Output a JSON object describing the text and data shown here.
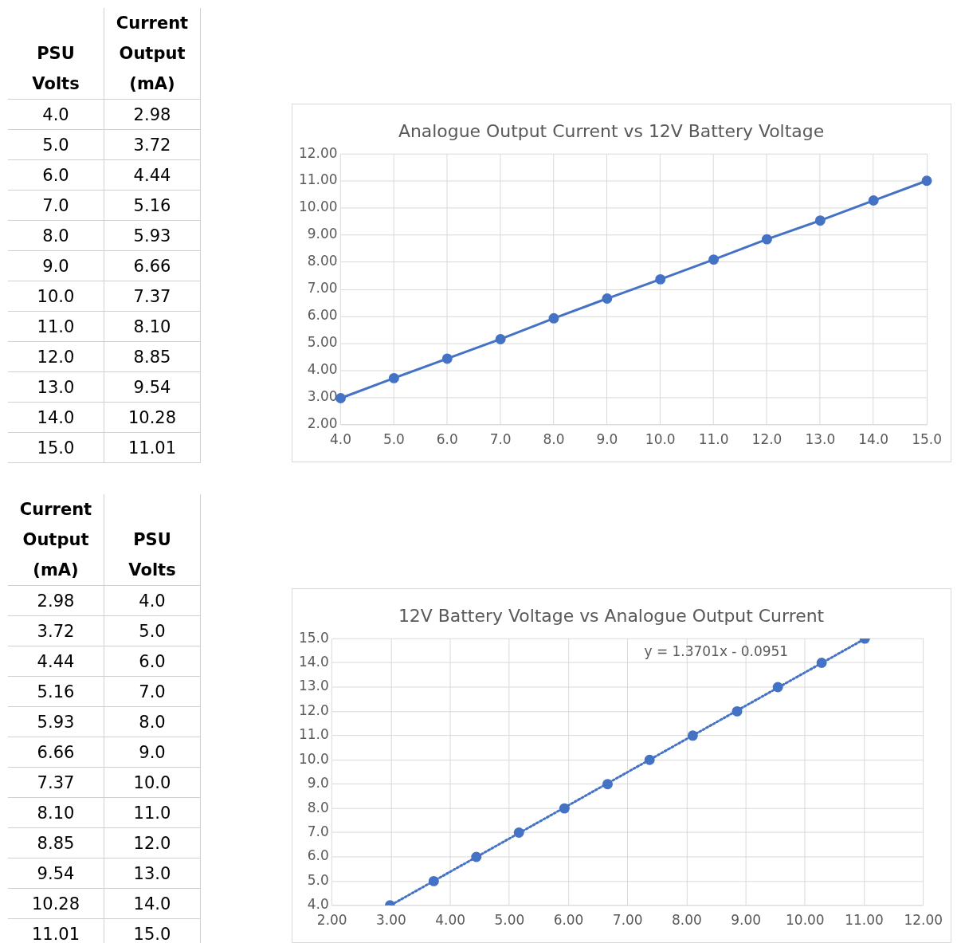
{
  "chart_data": [
    {
      "type": "line",
      "title": "Analogue Output Current vs 12V Battery Voltage",
      "annotations": [
        "PSU Volts",
        "Current Output (mA)",
        "4.0",
        "2.98",
        "5.0",
        "3.72",
        "6.0",
        "4.44",
        "7.0",
        "5.16",
        "8.0",
        "5.93",
        "9.0",
        "6.66",
        "10.0",
        "7.37",
        "11.0",
        "8.10",
        "12.0",
        "8.85",
        "13.0",
        "9.54",
        "14.0",
        "10.28",
        "15.0",
        "11.01"
      ],
      "categories": [
        "4.0",
        "5.0",
        "6.0",
        "7.0",
        "8.0",
        "9.0",
        "10.0",
        "11.0",
        "12.0",
        "13.0",
        "14.0",
        "15.0"
      ],
      "values": [
        2.98,
        3.72,
        4.44,
        5.16,
        5.93,
        6.66,
        7.37,
        8.1,
        8.85,
        9.54,
        10.28,
        11.01
      ],
      "color": "#4472c4",
      "marker": "circle",
      "line_style": "solid",
      "grid": true,
      "ylim": [
        2,
        12
      ],
      "yticks": [
        {
          "value": 2,
          "label": "2.00"
        },
        {
          "value": 3,
          "label": "3.00"
        },
        {
          "value": 4,
          "label": "4.00"
        },
        {
          "value": 5,
          "label": "5.00"
        },
        {
          "value": 6,
          "label": "6.00"
        },
        {
          "value": 7,
          "label": "7.00"
        },
        {
          "value": 8,
          "label": "8.00"
        },
        {
          "value": 9,
          "label": "9.00"
        },
        {
          "value": 10,
          "label": "10.00"
        },
        {
          "value": 11,
          "label": "11.00"
        },
        {
          "value": 12,
          "label": "12.00"
        }
      ]
    },
    {
      "type": "scatter",
      "title": "12V Battery Voltage vs Analogue Output Current",
      "annotations": [
        "Current Output (mA)",
        "PSU Volts",
        "2.98",
        "4.0",
        "3.72",
        "5.0",
        "4.44",
        "6.0",
        "5.16",
        "7.0",
        "5.93",
        "8.0",
        "6.66",
        "9.0",
        "7.37",
        "10.0",
        "8.10",
        "11.0",
        "8.85",
        "12.0",
        "9.54",
        "13.0",
        "10.28",
        "14.0",
        "11.01",
        "15.0",
        "y = 1.3701x - 0.0951"
      ],
      "x": [
        2.98,
        3.72,
        4.44,
        5.16,
        5.93,
        6.66,
        7.37,
        8.1,
        8.85,
        9.54,
        10.28,
        11.01
      ],
      "series": [
        {
          "color": "#4472c4",
          "marker": "circle",
          "values": [
            4.0,
            5.0,
            6.0,
            7.0,
            8.0,
            9.0,
            10.0,
            11.0,
            12.0,
            13.0,
            14.0,
            15.0
          ]
        },
        {
          "type": "line",
          "color": "#4472c4",
          "marker": "none",
          "line_style": "dotted",
          "x": [
            3.0,
            11.01
          ],
          "values": [
            4.02,
            14.99
          ]
        }
      ],
      "grid": true,
      "xlim": [
        2,
        12
      ],
      "ylim": [
        4,
        15
      ],
      "xticks": [
        {
          "value": 2,
          "label": "2.00"
        },
        {
          "value": 3,
          "label": "3.00"
        },
        {
          "value": 4,
          "label": "4.00"
        },
        {
          "value": 5,
          "label": "5.00"
        },
        {
          "value": 6,
          "label": "6.00"
        },
        {
          "value": 7,
          "label": "7.00"
        },
        {
          "value": 8,
          "label": "8.00"
        },
        {
          "value": 9,
          "label": "9.00"
        },
        {
          "value": 10,
          "label": "10.00"
        },
        {
          "value": 11,
          "label": "11.00"
        },
        {
          "value": 12,
          "label": "12.00"
        }
      ],
      "yticks": [
        {
          "value": 4,
          "label": "4.0"
        },
        {
          "value": 5,
          "label": "5.0"
        },
        {
          "value": 6,
          "label": "6.0"
        },
        {
          "value": 7,
          "label": "7.0"
        },
        {
          "value": 8,
          "label": "8.0"
        },
        {
          "value": 9,
          "label": "9.0"
        },
        {
          "value": 10,
          "label": "10.0"
        },
        {
          "value": 11,
          "label": "11.0"
        },
        {
          "value": 12,
          "label": "12.0"
        },
        {
          "value": 13,
          "label": "13.0"
        },
        {
          "value": 14,
          "label": "14.0"
        },
        {
          "value": 15,
          "label": "15.0"
        }
      ]
    }
  ]
}
